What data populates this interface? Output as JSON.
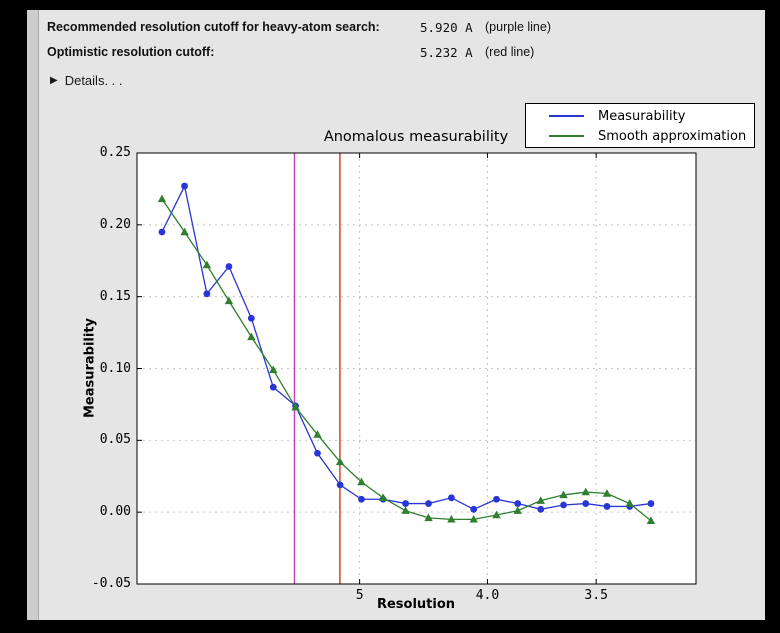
{
  "header": {
    "rows": [
      {
        "label": "Recommended resolution cutoff for heavy-atom search:",
        "value": "5.920 A",
        "note": "(purple line)"
      },
      {
        "label": "Optimistic resolution cutoff:",
        "value": "5.232 A",
        "note": "(red line)"
      }
    ],
    "details_icon": "▶",
    "details_label": "Details. . ."
  },
  "chart_data": {
    "type": "line",
    "title": "Anomalous measurability",
    "xlabel": "Resolution",
    "ylabel": "Measurability",
    "x_scale": "inverse_d_squared",
    "xlim_d": [
      34.9,
      3.175
    ],
    "ylim": [
      -0.05,
      0.25
    ],
    "grid": true,
    "x_resolution_A": [
      13.85,
      10.43,
      8.73,
      7.67,
      6.91,
      6.35,
      5.9,
      5.54,
      5.23,
      4.98,
      4.76,
      4.56,
      4.38,
      4.22,
      4.08,
      3.95,
      3.84,
      3.73,
      3.63,
      3.54,
      3.46,
      3.38,
      3.31
    ],
    "series": [
      {
        "name": "Measurability",
        "color": "#2936d6",
        "marker": "circle",
        "values": [
          0.195,
          0.227,
          0.152,
          0.171,
          0.135,
          0.087,
          0.074,
          0.041,
          0.019,
          0.009,
          0.009,
          0.006,
          0.006,
          0.01,
          0.002,
          0.009,
          0.006,
          0.002,
          0.005,
          0.006,
          0.004,
          0.004,
          0.006
        ]
      },
      {
        "name": "Smooth approximation",
        "color": "#2f7f2f",
        "marker": "triangle",
        "values": [
          0.218,
          0.195,
          0.172,
          0.147,
          0.122,
          0.099,
          0.073,
          0.054,
          0.035,
          0.021,
          0.01,
          0.001,
          -0.004,
          -0.005,
          -0.005,
          -0.002,
          0.001,
          0.008,
          0.012,
          0.014,
          0.013,
          0.006,
          -0.006
        ]
      }
    ],
    "x_ticks": [
      {
        "d": 5.0,
        "label": "5"
      },
      {
        "d": 4.0,
        "label": "4.0"
      },
      {
        "d": 3.5,
        "label": "3.5"
      }
    ],
    "y_ticks": [
      {
        "v": 0.25,
        "label": "0.25"
      },
      {
        "v": 0.2,
        "label": "0.20"
      },
      {
        "v": 0.15,
        "label": "0.15"
      },
      {
        "v": 0.1,
        "label": "0.10"
      },
      {
        "v": 0.05,
        "label": "0.05"
      },
      {
        "v": 0.0,
        "label": "0.00"
      },
      {
        "v": -0.05,
        "label": "-0.05"
      }
    ],
    "cutoff_lines": [
      {
        "name": "recommended-heavy-atom-cutoff",
        "d": 5.92,
        "color": "#c73cc7"
      },
      {
        "name": "optimistic-cutoff",
        "d": 5.232,
        "color": "#cd3a0e"
      }
    ],
    "grid_color": "#c6c6c6",
    "plot_bg": "#ffffff"
  },
  "legend": {
    "items": [
      {
        "label": "Measurability",
        "color": "#2936d6"
      },
      {
        "label": "Smooth approximation",
        "color": "#2f7f2f"
      }
    ]
  }
}
